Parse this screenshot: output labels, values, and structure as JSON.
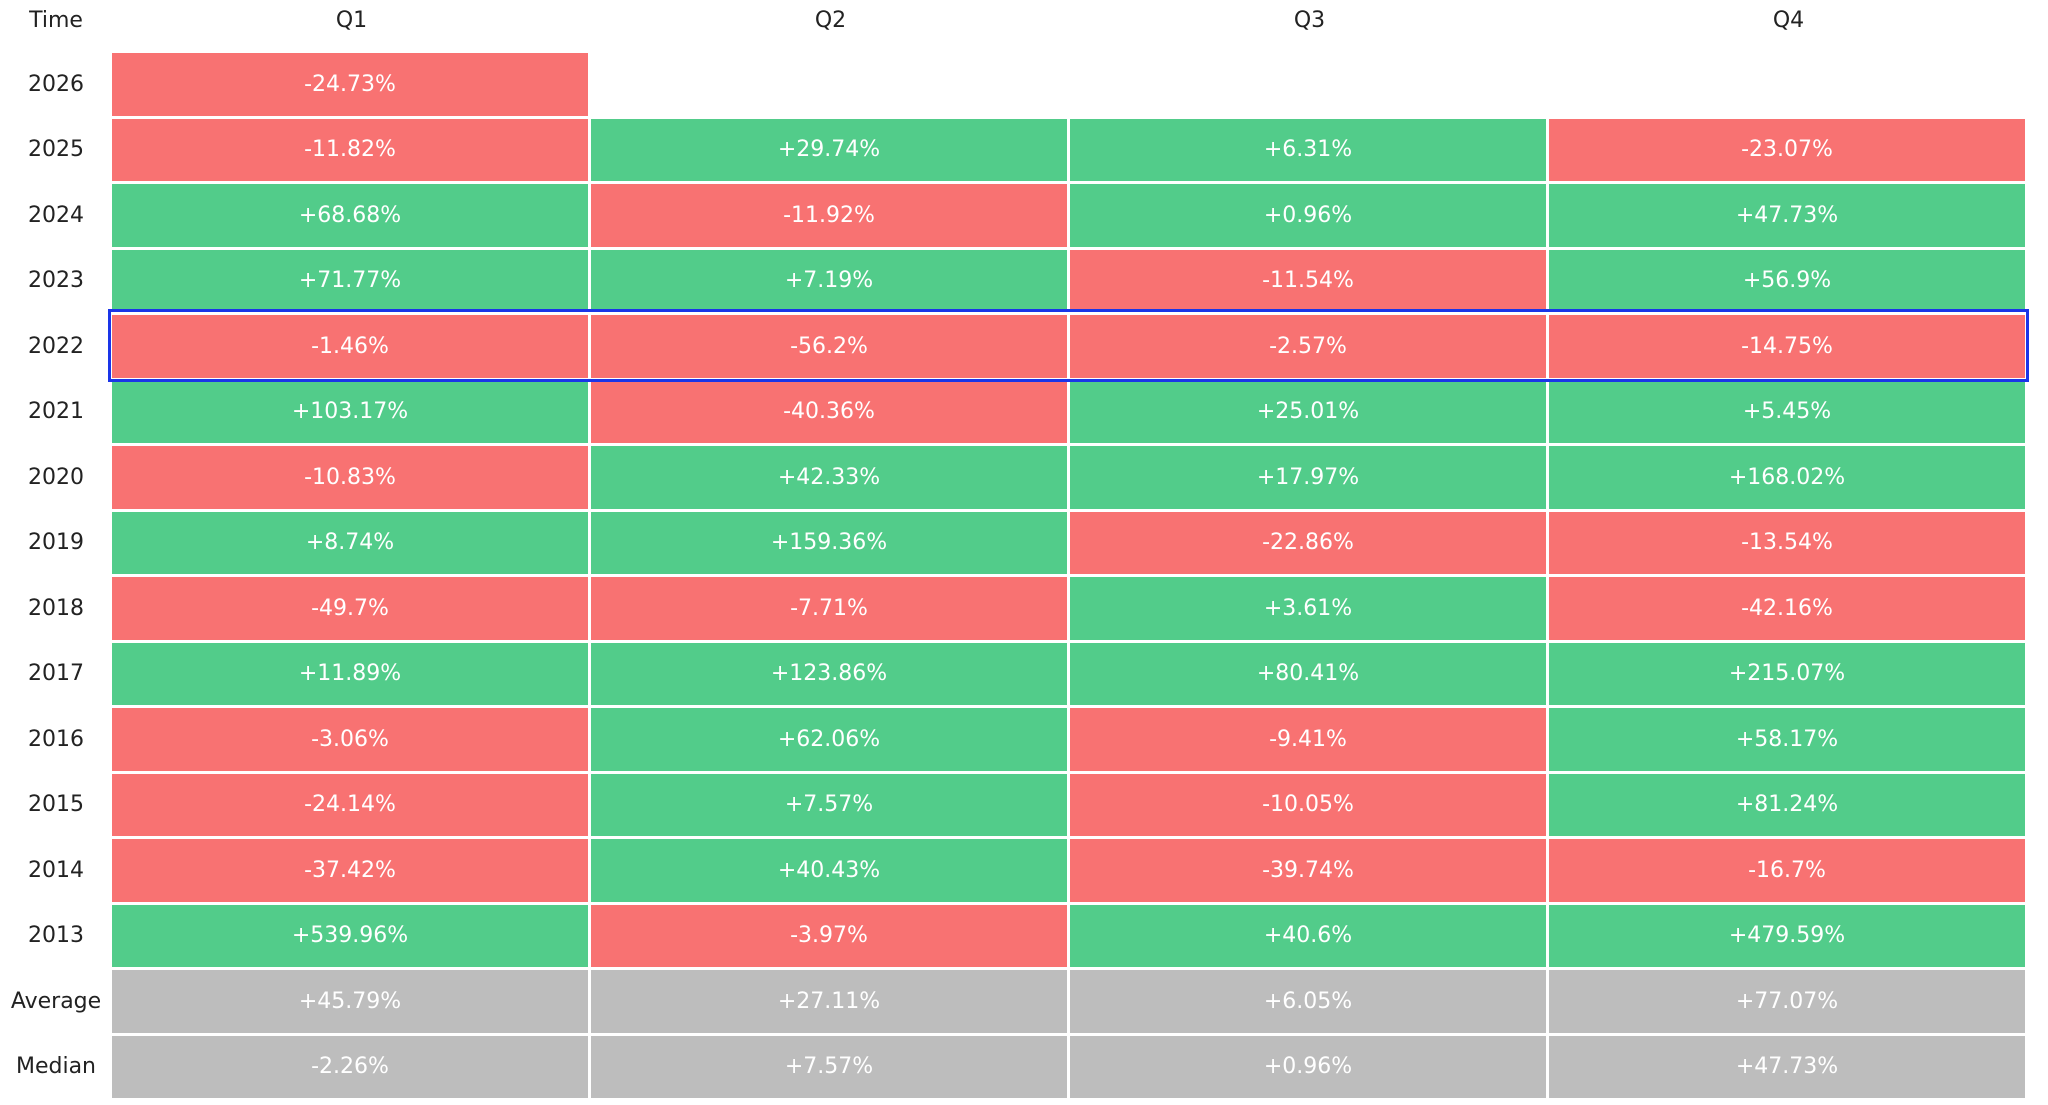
{
  "table": {
    "header": [
      "Time",
      "Q1",
      "Q2",
      "Q3",
      "Q4"
    ],
    "rows": [
      [
        "2026",
        "-24.73%",
        null,
        null,
        null
      ],
      [
        "2025",
        "-11.82%",
        "+29.74%",
        "+6.31%",
        "-23.07%"
      ],
      [
        "2024",
        "+68.68%",
        "-11.92%",
        "+0.96%",
        "+47.73%"
      ],
      [
        "2023",
        "+71.77%",
        "+7.19%",
        "-11.54%",
        "+56.9%"
      ],
      [
        "2022",
        "-1.46%",
        "-56.2%",
        "-2.57%",
        "-14.75%"
      ],
      [
        "2021",
        "+103.17%",
        "-40.36%",
        "+25.01%",
        "+5.45%"
      ],
      [
        "2020",
        "-10.83%",
        "+42.33%",
        "+17.97%",
        "+168.02%"
      ],
      [
        "2019",
        "+8.74%",
        "+159.36%",
        "-22.86%",
        "-13.54%"
      ],
      [
        "2018",
        "-49.7%",
        "-7.71%",
        "+3.61%",
        "-42.16%"
      ],
      [
        "2017",
        "+11.89%",
        "+123.86%",
        "+80.41%",
        "+215.07%"
      ],
      [
        "2016",
        "-3.06%",
        "+62.06%",
        "-9.41%",
        "+58.17%"
      ],
      [
        "2015",
        "-24.14%",
        "+7.57%",
        "-10.05%",
        "+81.24%"
      ],
      [
        "2014",
        "-37.42%",
        "+40.43%",
        "-39.74%",
        "-16.7%"
      ],
      [
        "2013",
        "+539.96%",
        "-3.97%",
        "+40.6%",
        "+479.59%"
      ],
      [
        "Average",
        "+45.79%",
        "+27.11%",
        "+6.05%",
        "+77.07%"
      ],
      [
        "Median",
        "-2.26%",
        "+7.57%",
        "+0.96%",
        "+47.73%"
      ]
    ]
  }
}
